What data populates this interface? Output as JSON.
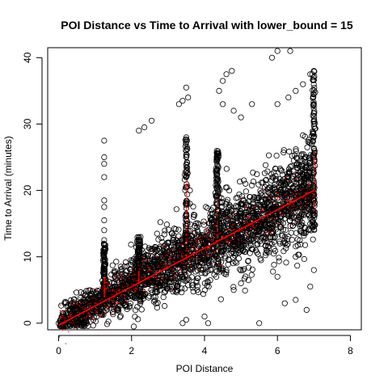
{
  "chart_data": {
    "type": "scatter",
    "title": "POI Distance vs Time to Arrival with lower_bound = 15",
    "xlabel": "POI Distance",
    "ylabel": "Time to Arrival (minutes)",
    "xlim": [
      -0.3,
      8.3
    ],
    "ylim": [
      -1,
      41.5
    ],
    "x_ticks": [
      0,
      2,
      4,
      6,
      8
    ],
    "y_ticks": [
      0,
      10,
      20,
      30,
      40
    ],
    "grid": false,
    "legend": "none",
    "series": [
      {
        "marker": "open-circle",
        "color": "#000000",
        "description_points": [
          [
            0.0,
            0.0
          ],
          [
            0.05,
            0.5
          ],
          [
            0.1,
            1.0
          ],
          [
            0.2,
            1.5
          ],
          [
            0.3,
            1.8
          ],
          [
            0.4,
            2.0
          ],
          [
            0.5,
            2.5
          ],
          [
            0.6,
            3.0
          ],
          [
            0.7,
            3.2
          ],
          [
            0.8,
            3.5
          ],
          [
            0.9,
            3.8
          ],
          [
            1.0,
            4.0
          ],
          [
            1.1,
            4.2
          ],
          [
            1.2,
            4.5
          ],
          [
            1.25,
            27.5
          ],
          [
            1.25,
            25.0
          ],
          [
            1.25,
            24.0
          ],
          [
            1.25,
            22.0
          ],
          [
            1.25,
            18.5
          ],
          [
            1.25,
            17.5
          ],
          [
            1.25,
            15.5
          ],
          [
            1.25,
            14.0
          ],
          [
            1.25,
            12.5
          ],
          [
            1.25,
            10.5
          ],
          [
            1.25,
            8.0
          ],
          [
            1.3,
            4.5
          ],
          [
            1.5,
            5.0
          ],
          [
            1.7,
            5.5
          ],
          [
            1.9,
            6.0
          ],
          [
            2.0,
            6.5
          ],
          [
            2.1,
            7.0
          ],
          [
            2.2,
            29.0
          ],
          [
            2.35,
            29.5
          ],
          [
            2.55,
            30.5
          ],
          [
            2.5,
            8.0
          ],
          [
            2.8,
            9.0
          ],
          [
            3.0,
            10.0
          ],
          [
            3.2,
            12.0
          ],
          [
            3.3,
            33.0
          ],
          [
            3.4,
            33.5
          ],
          [
            3.5,
            35.5
          ],
          [
            3.55,
            34.0
          ],
          [
            3.5,
            28.0
          ],
          [
            3.5,
            25.0
          ],
          [
            3.5,
            22.0
          ],
          [
            3.6,
            20.0
          ],
          [
            3.6,
            18.0
          ],
          [
            3.7,
            16.0
          ],
          [
            3.8,
            14.0
          ],
          [
            4.0,
            13.0
          ],
          [
            4.2,
            15.0
          ],
          [
            4.35,
            17.0
          ],
          [
            4.4,
            19.0
          ],
          [
            4.5,
            36.5
          ],
          [
            4.6,
            37.5
          ],
          [
            4.75,
            38.0
          ],
          [
            4.4,
            35.0
          ],
          [
            4.5,
            33.0
          ],
          [
            4.8,
            32.0
          ],
          [
            5.0,
            31.0
          ],
          [
            5.3,
            33.0
          ],
          [
            5.5,
            14.0
          ],
          [
            5.7,
            18.0
          ],
          [
            5.85,
            40.0
          ],
          [
            6.0,
            41.0
          ],
          [
            6.35,
            41.0
          ],
          [
            6.0,
            33.0
          ],
          [
            6.3,
            34.0
          ],
          [
            6.5,
            35.0
          ],
          [
            6.7,
            36.0
          ],
          [
            6.9,
            37.5
          ],
          [
            7.0,
            38.0
          ],
          [
            7.0,
            30.0
          ],
          [
            7.0,
            25.0
          ],
          [
            7.0,
            20.0
          ],
          [
            7.0,
            15.0
          ],
          [
            6.9,
            5.5
          ],
          [
            7.0,
            8.0
          ],
          [
            6.5,
            3.5
          ],
          [
            6.8,
            2.0
          ],
          [
            6.2,
            3.0
          ],
          [
            4.0,
            1.0
          ],
          [
            3.5,
            0.5
          ],
          [
            3.4,
            0.0
          ],
          [
            4.1,
            0.0
          ],
          [
            5.5,
            0.0
          ],
          [
            4.8,
            5.0
          ],
          [
            5.0,
            6.0
          ],
          [
            6.0,
            7.0
          ],
          [
            6.5,
            10.0
          ],
          [
            3.8,
            5.0
          ],
          [
            4.6,
            8.0
          ],
          [
            5.8,
            12.0
          ],
          [
            6.2,
            13.0
          ],
          [
            6.8,
            17.0
          ],
          [
            6.0,
            15.0
          ],
          [
            5.0,
            12.0
          ]
        ]
      },
      {
        "marker": "fit-line",
        "color": "#ff0000",
        "points": [
          [
            0.0,
            -0.3
          ],
          [
            7.0,
            20.0
          ]
        ]
      }
    ]
  }
}
